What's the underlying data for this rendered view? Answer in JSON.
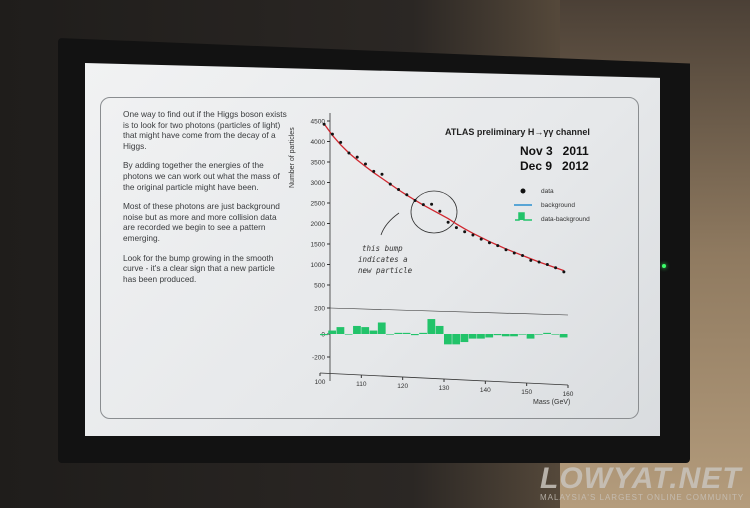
{
  "text_blocks": [
    "One way to find out if the Higgs boson exists is to look for two photons (particles of light) that might have come from the decay of a Higgs.",
    "By adding together the energies of the photons we can work out what the mass of the original particle might have been.",
    "Most of these photons are just background noise but as more and more collision data are recorded we begin to see a pattern emerging.",
    "Look for the bump growing in the smooth curve - it's a clear sign that a new particle has been produced."
  ],
  "watermark": {
    "brand": "LOWYAT.NET",
    "tagline": "MALAYSIA'S LARGEST ONLINE COMMUNITY"
  },
  "chart_data": {
    "type": "scatter",
    "title": "ATLAS preliminary H→γγ channel",
    "dates": [
      "Nov 3   2011",
      "Dec 9   2012"
    ],
    "xlabel": "Mass (GeV)",
    "ylabel": "Number of particles",
    "xlim": [
      100,
      160
    ],
    "ylim": [
      500,
      4500
    ],
    "xticks": [
      100,
      110,
      120,
      130,
      140,
      150,
      160
    ],
    "yticks": [
      500,
      1000,
      1500,
      2000,
      2500,
      3000,
      3500,
      4000,
      4500
    ],
    "residual_ylim": [
      -200,
      200
    ],
    "residual_yticks": [
      200,
      0,
      -200
    ],
    "annotation": [
      "this bump",
      "indicates a",
      "new particle"
    ],
    "legend": {
      "position": "right",
      "entries": [
        "data",
        "background",
        "data-background"
      ]
    },
    "colors": {
      "data": "#111111",
      "background": "#d0262e",
      "legend_background": "#2a8fd0",
      "residual": "#22c36a"
    },
    "x": [
      101,
      103,
      105,
      107,
      109,
      111,
      113,
      115,
      117,
      119,
      121,
      123,
      125,
      127,
      129,
      131,
      133,
      135,
      137,
      139,
      141,
      143,
      145,
      147,
      149,
      151,
      153,
      155,
      157,
      159
    ],
    "series": [
      {
        "name": "data",
        "values": [
          4420,
          4180,
          3980,
          3720,
          3620,
          3450,
          3270,
          3200,
          2960,
          2830,
          2700,
          2560,
          2460,
          2470,
          2300,
          2030,
          1900,
          1800,
          1720,
          1620,
          1530,
          1460,
          1360,
          1280,
          1220,
          1100,
          1060,
          1000,
          920,
          820
        ]
      },
      {
        "name": "background",
        "values": [
          4430,
          4150,
          3920,
          3720,
          3550,
          3390,
          3240,
          3100,
          2960,
          2820,
          2690,
          2570,
          2450,
          2340,
          2230,
          2120,
          1990,
          1870,
          1760,
          1660,
          1560,
          1470,
          1380,
          1300,
          1220,
          1140,
          1060,
          990,
          920,
          850
        ]
      }
    ]
  }
}
